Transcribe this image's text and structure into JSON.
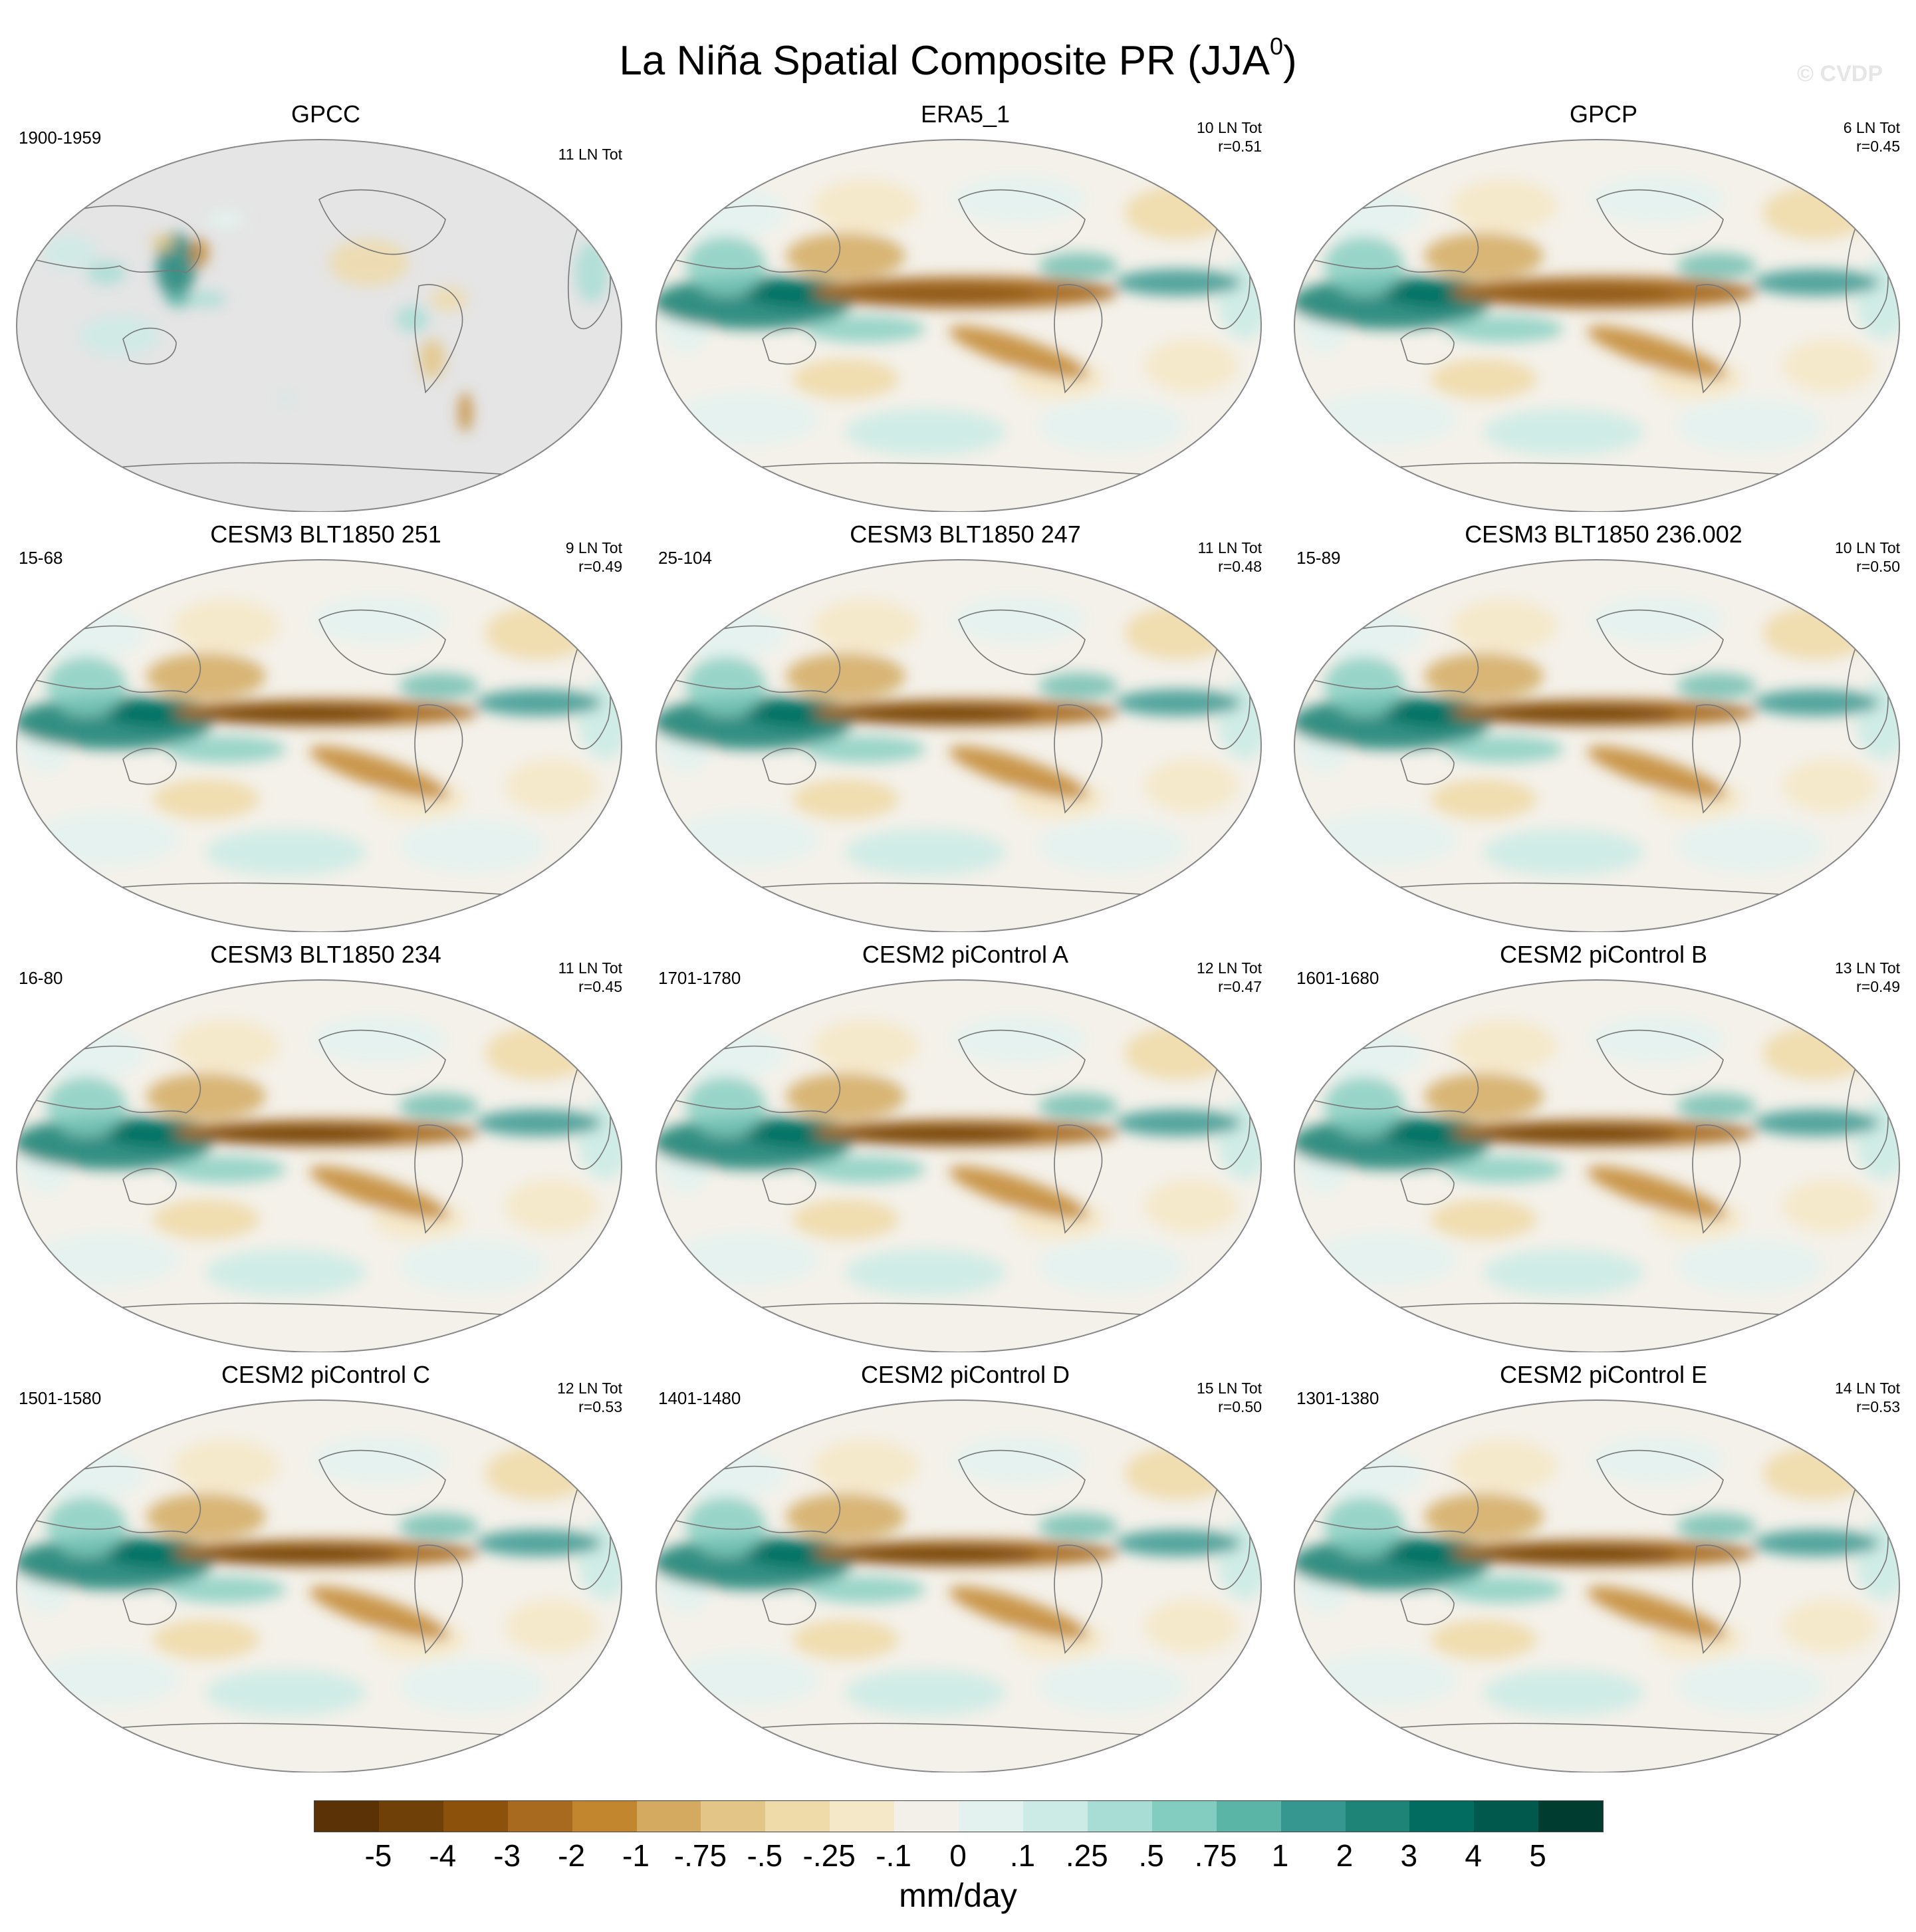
{
  "title": "La Niña Spatial Composite PR (JJA",
  "title_sup": "0",
  "title_close": ")",
  "watermark": "© CVDP",
  "panels": [
    {
      "id": "gpcc",
      "title": "GPCC",
      "years": "1900-1959",
      "stats": [
        "11 LN Tot"
      ],
      "style": "gpcc"
    },
    {
      "id": "era5",
      "title": "ERA5_1",
      "years": "",
      "stats": [
        "10 LN Tot",
        "r=0.51"
      ],
      "style": "obs"
    },
    {
      "id": "gpcp",
      "title": "GPCP",
      "years": "",
      "stats": [
        "6 LN Tot",
        "r=0.45"
      ],
      "style": "obs"
    },
    {
      "id": "cesm3-251",
      "title": "CESM3 BLT1850 251",
      "years": "15-68",
      "stats": [
        "9 LN Tot",
        "r=0.49"
      ],
      "style": "model"
    },
    {
      "id": "cesm3-247",
      "title": "CESM3 BLT1850 247",
      "years": "25-104",
      "stats": [
        "11 LN Tot",
        "r=0.48"
      ],
      "style": "model"
    },
    {
      "id": "cesm3-236",
      "title": "CESM3 BLT1850 236.002",
      "years": "15-89",
      "stats": [
        "10 LN Tot",
        "r=0.50"
      ],
      "style": "model"
    },
    {
      "id": "cesm3-234",
      "title": "CESM3 BLT1850 234",
      "years": "16-80",
      "stats": [
        "11 LN Tot",
        "r=0.45"
      ],
      "style": "model"
    },
    {
      "id": "cesm2-a",
      "title": "CESM2 piControl A",
      "years": "1701-1780",
      "stats": [
        "12 LN Tot",
        "r=0.47"
      ],
      "style": "model"
    },
    {
      "id": "cesm2-b",
      "title": "CESM2 piControl B",
      "years": "1601-1680",
      "stats": [
        "13 LN Tot",
        "r=0.49"
      ],
      "style": "model"
    },
    {
      "id": "cesm2-c",
      "title": "CESM2 piControl C",
      "years": "1501-1580",
      "stats": [
        "12 LN Tot",
        "r=0.53"
      ],
      "style": "model"
    },
    {
      "id": "cesm2-d",
      "title": "CESM2 piControl D",
      "years": "1401-1480",
      "stats": [
        "15 LN Tot",
        "r=0.50"
      ],
      "style": "model"
    },
    {
      "id": "cesm2-e",
      "title": "CESM2 piControl E",
      "years": "1301-1380",
      "stats": [
        "14 LN Tot",
        "r=0.53"
      ],
      "style": "model"
    }
  ],
  "colorbar": {
    "colors": [
      "#5a3206",
      "#704009",
      "#8c510a",
      "#a86a1f",
      "#c2862f",
      "#d3aa60",
      "#e3c587",
      "#efdaaa",
      "#f5e8c8",
      "#f3f0ea",
      "#e4f2ef",
      "#ccebe6",
      "#a8ddd5",
      "#83cdc0",
      "#5ab5a7",
      "#35978f",
      "#1f8478",
      "#016c5f",
      "#01594d",
      "#003c30"
    ],
    "labels": [
      "-5",
      "-4",
      "-3",
      "-2",
      "-1",
      "-.75",
      "-.5",
      "-.25",
      "-.1",
      "0",
      ".1",
      ".25",
      ".5",
      ".75",
      "1",
      "2",
      "3",
      "4",
      "5"
    ],
    "units": "mm/day"
  }
}
